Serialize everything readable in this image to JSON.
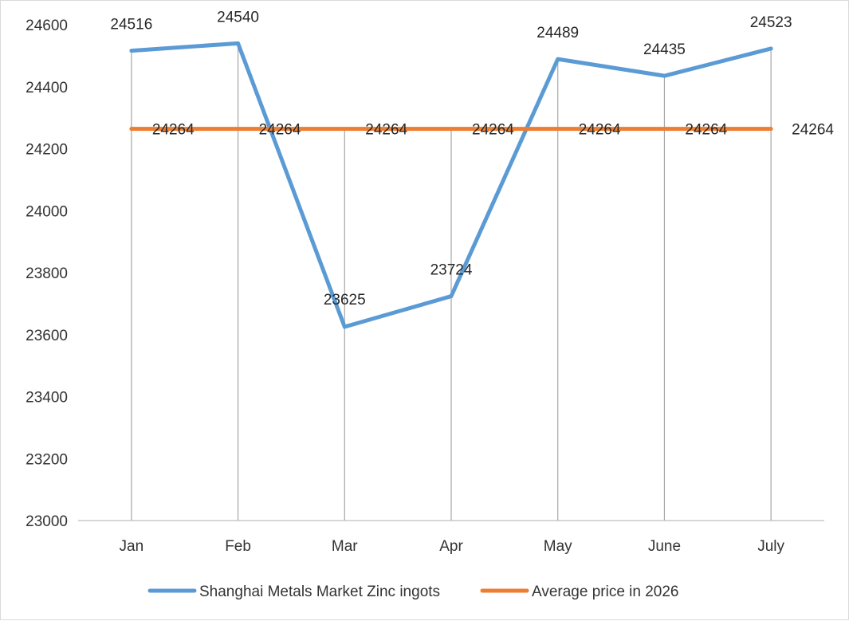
{
  "chart_data": {
    "type": "line",
    "categories": [
      "Jan",
      "Feb",
      "Mar",
      "Apr",
      "May",
      "June",
      "July"
    ],
    "series": [
      {
        "name": "Shanghai Metals Market Zinc ingots",
        "values": [
          24516,
          24540,
          23625,
          23724,
          24489,
          24435,
          24523
        ],
        "color": "#5b9bd5"
      },
      {
        "name": "Average price in 2026",
        "values": [
          24264,
          24264,
          24264,
          24264,
          24264,
          24264,
          24264
        ],
        "color": "#ed7d31"
      }
    ],
    "ylim": [
      23000,
      24600
    ],
    "yticks": [
      23000,
      23200,
      23400,
      23600,
      23800,
      24000,
      24200,
      24400,
      24600
    ],
    "drop_lines": true,
    "grid": false,
    "legend_position": "bottom",
    "title": "",
    "xlabel": "",
    "ylabel": ""
  }
}
